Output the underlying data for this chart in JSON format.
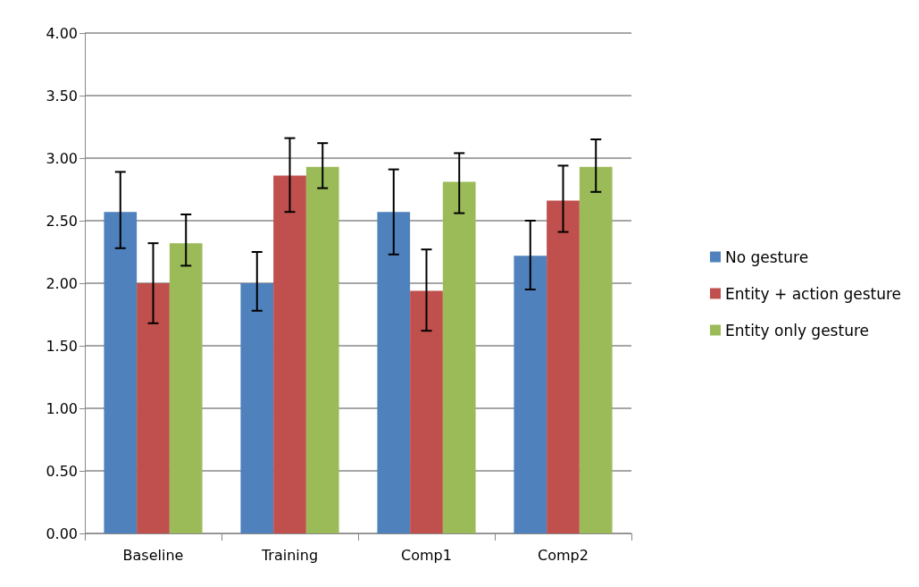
{
  "chart_data": {
    "type": "bar",
    "categories": [
      "Baseline",
      "Training",
      "Comp1",
      "Comp2"
    ],
    "series": [
      {
        "name": "No gesture",
        "color": "#4f81bd",
        "values": [
          2.57,
          2.0,
          2.57,
          2.22
        ],
        "errors": [
          [
            2.28,
            2.89
          ],
          [
            1.78,
            2.25
          ],
          [
            2.23,
            2.91
          ],
          [
            1.95,
            2.5
          ]
        ]
      },
      {
        "name": "Entity + action gesture",
        "color": "#c0504d",
        "values": [
          2.0,
          2.86,
          1.94,
          2.66
        ],
        "errors": [
          [
            1.68,
            2.32
          ],
          [
            2.57,
            3.16
          ],
          [
            1.62,
            2.27
          ],
          [
            2.41,
            2.94
          ]
        ]
      },
      {
        "name": "Entity only gesture",
        "color": "#9bbb59",
        "values": [
          2.32,
          2.93,
          2.81,
          2.93
        ],
        "errors": [
          [
            2.14,
            2.55
          ],
          [
            2.76,
            3.12
          ],
          [
            2.56,
            3.04
          ],
          [
            2.73,
            3.15
          ]
        ]
      }
    ],
    "ylim": [
      0,
      4
    ],
    "yticks": [
      {
        "value": 0,
        "label": "0.00"
      },
      {
        "value": 0.5,
        "label": "0.50"
      },
      {
        "value": 1,
        "label": "1.00"
      },
      {
        "value": 1.5,
        "label": "1.50"
      },
      {
        "value": 2,
        "label": "2.00"
      },
      {
        "value": 2.5,
        "label": "2.50"
      },
      {
        "value": 3,
        "label": "3.00"
      },
      {
        "value": 3.5,
        "label": "3.50"
      },
      {
        "value": 4,
        "label": "4.00"
      }
    ],
    "grid": "y",
    "legend": "right"
  }
}
